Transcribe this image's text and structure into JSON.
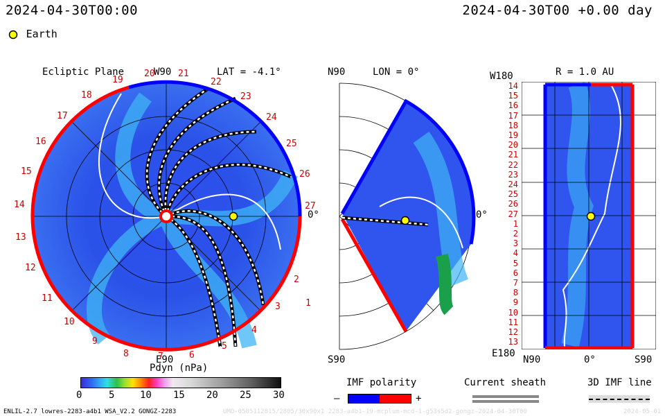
{
  "header": {
    "left_date": "2024-04-30T00:00",
    "right_date": "2024-04-30T00 +0.00 day"
  },
  "legend": {
    "earth_label": "Earth",
    "earth_color": "#ffff00"
  },
  "ecliptic": {
    "title": "Ecliptic Plane",
    "top_label": "W90",
    "bottom_label": "E90",
    "right_label": "0°",
    "lat_label": "LAT = -4.1°",
    "clock_numbers": [
      "1",
      "2",
      "3",
      "4",
      "5",
      "6",
      "7",
      "8",
      "9",
      "10",
      "11",
      "12",
      "13",
      "14",
      "15",
      "16",
      "17",
      "18",
      "19",
      "20",
      "21",
      "22",
      "23",
      "24",
      "25",
      "26",
      "27"
    ]
  },
  "meridional": {
    "top_label": "N90",
    "bottom_label": "S90",
    "lon_label": "LON = 0°",
    "right_label": "0°"
  },
  "radial": {
    "title": "R = 1.0 AU",
    "top_label": "W180",
    "bottom_label": "E180",
    "x_left": "N90",
    "x_mid": "0°",
    "x_right": "S90",
    "rows": [
      "14",
      "15",
      "16",
      "17",
      "18",
      "19",
      "20",
      "21",
      "22",
      "23",
      "24",
      "25",
      "26",
      "27",
      "1",
      "2",
      "3",
      "4",
      "5",
      "6",
      "7",
      "8",
      "9",
      "10",
      "11",
      "12",
      "13"
    ]
  },
  "colorbar": {
    "title": "Pdyn (nPa)",
    "ticks": [
      "0",
      "5",
      "10",
      "15",
      "20",
      "25",
      "30"
    ]
  },
  "imf_polarity": {
    "title": "IMF polarity",
    "minus": "–",
    "plus": "+",
    "neg_color": "#0000ff",
    "pos_color": "#ff0000"
  },
  "current_sheath": {
    "title": "Current sheath"
  },
  "imf_line": {
    "title": "3D IMF line"
  },
  "footer": {
    "model": "ENLIL-2.7 lowres-2283-a4b1 WSA_V2.2 GONGZ-2283",
    "run_id": "UMD-0505112815/2805/30x90x1 2283-a4b1-19-mcplum-mcd-1-g53s5d2-gongz-2024-04-30T00",
    "right_date": "2024-05-01"
  }
}
